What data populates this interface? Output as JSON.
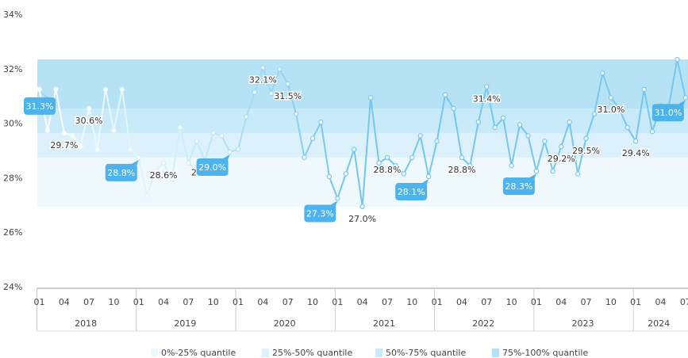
{
  "chart_data": {
    "type": "line",
    "ylim": [
      24,
      34
    ],
    "yticks": [
      {
        "value": 24,
        "label": "24%"
      },
      {
        "value": 26,
        "label": "26%"
      },
      {
        "value": 28,
        "label": "28%"
      },
      {
        "value": 30,
        "label": "30%"
      },
      {
        "value": 32,
        "label": "32%"
      },
      {
        "value": 34,
        "label": "34%"
      }
    ],
    "years": [
      "2018",
      "2019",
      "2020",
      "2021",
      "2022",
      "2023",
      "2024"
    ],
    "month_ticks": [
      "01",
      "04",
      "07",
      "10"
    ],
    "series": [
      {
        "color": "#74c8ef",
        "values": [
          31.3,
          29.8,
          31.3,
          29.7,
          29.6,
          29.2,
          30.6,
          29.1,
          31.3,
          29.8,
          31.3,
          29.1,
          28.8,
          27.4,
          28.3,
          28.6,
          28.0,
          29.9,
          28.6,
          29.4,
          28.7,
          29.7,
          29.6,
          29.0,
          29.1,
          30.3,
          31.2,
          32.1,
          31.15,
          32.05,
          31.5,
          30.4,
          28.8,
          29.5,
          30.1,
          28.1,
          27.3,
          28.2,
          29.1,
          27.0,
          31.0,
          28.6,
          28.8,
          28.5,
          28.2,
          28.8,
          29.6,
          28.1,
          29.4,
          31.1,
          30.6,
          28.8,
          28.5,
          30.1,
          31.4,
          29.9,
          30.25,
          28.5,
          30.0,
          29.6,
          28.3,
          29.4,
          28.3,
          29.2,
          30.1,
          28.2,
          29.5,
          30.4,
          31.9,
          31.0,
          30.6,
          29.9,
          29.4,
          31.3,
          29.75,
          30.7,
          30.7,
          32.4,
          31.0
        ]
      }
    ],
    "bands": [
      {
        "name": "0%-25% quantile",
        "from": 27.0,
        "to": 28.8,
        "color": "#eef8fd"
      },
      {
        "name": "25%-50% quantile",
        "from": 28.8,
        "to": 29.7,
        "color": "#dcf1fb"
      },
      {
        "name": "50%-75% quantile",
        "from": 29.7,
        "to": 30.6,
        "color": "#c9eaf9"
      },
      {
        "name": "75%-100% quantile",
        "from": 30.6,
        "to": 32.4,
        "color": "#b6e2f6"
      }
    ],
    "annotations": [
      {
        "index": 0,
        "label": "31.3%",
        "boxed": true
      },
      {
        "index": 3,
        "label": "29.7%"
      },
      {
        "index": 6,
        "label": "30.6%"
      },
      {
        "index": 12,
        "label": "28.8%",
        "boxed": true
      },
      {
        "index": 15,
        "label": "28.6%"
      },
      {
        "index": 20,
        "label": "28.7%"
      },
      {
        "index": 23,
        "label": "29.0%",
        "boxed": true
      },
      {
        "index": 27,
        "label": "32.1%"
      },
      {
        "index": 30,
        "label": "31.5%"
      },
      {
        "index": 36,
        "label": "27.3%",
        "boxed": true
      },
      {
        "index": 39,
        "label": "27.0%"
      },
      {
        "index": 42,
        "label": "28.8%"
      },
      {
        "index": 47,
        "label": "28.1%",
        "boxed": true
      },
      {
        "index": 51,
        "label": "28.8%"
      },
      {
        "index": 54,
        "label": "31.4%"
      },
      {
        "index": 60,
        "label": "28.3%",
        "boxed": true
      },
      {
        "index": 63,
        "label": "29.2%"
      },
      {
        "index": 66,
        "label": "29.5%"
      },
      {
        "index": 69,
        "label": "31.0%"
      },
      {
        "index": 72,
        "label": "29.4%"
      },
      {
        "index": 78,
        "label": "31.0%",
        "boxed": true
      }
    ]
  }
}
